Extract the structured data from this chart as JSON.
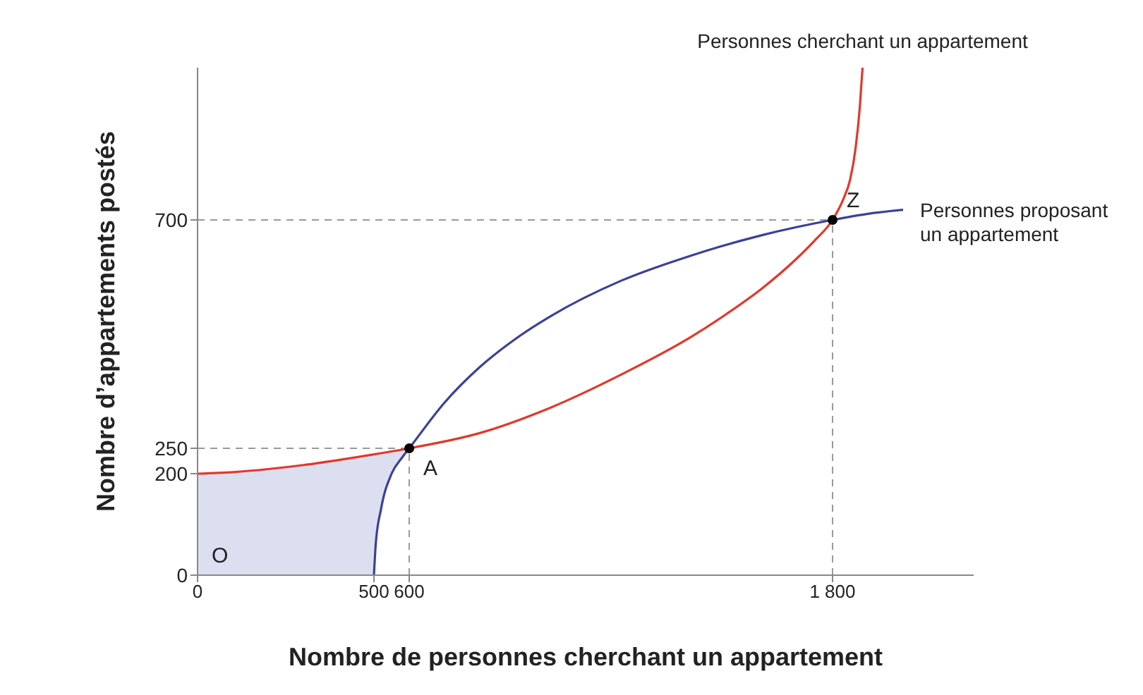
{
  "chart_data": {
    "type": "line",
    "xlabel": "Nombre de personnes cherchant un appartement",
    "ylabel": "Nombre d’appartements postés",
    "xlim": [
      0,
      2200
    ],
    "xticks": [
      0,
      500,
      600,
      {
        "value": 1800,
        "label": "1 800"
      }
    ],
    "ylim": [
      0,
      1000
    ],
    "yticks": [
      0,
      200,
      250,
      700
    ],
    "series": [
      {
        "color": "#dcdff0",
        "x": [
          0,
          100,
          200,
          300,
          400,
          500,
          505,
          520,
          550,
          580,
          600
        ],
        "values": [
          null,
          null,
          null,
          null,
          null,
          null,
          null,
          null,
          null,
          null,
          null
        ],
        "lower": [
          0,
          0,
          0,
          0,
          0,
          0,
          60,
          130,
          200,
          232,
          250
        ],
        "upper": [
          200,
          203,
          209,
          217,
          227,
          238,
          239,
          240,
          244,
          248,
          250
        ]
      },
      {
        "name": "Personnes cherchant un appartement",
        "color": "#e2382a",
        "x": [
          0,
          100,
          200,
          300,
          400,
          500,
          600,
          800,
          1000,
          1200,
          1400,
          1500,
          1600,
          1700,
          1750,
          1800,
          1830,
          1850,
          1865,
          1877,
          1885
        ],
        "values": [
          200,
          203,
          209,
          217,
          227,
          238,
          250,
          280,
          330,
          395,
          470,
          515,
          565,
          625,
          660,
          700,
          740,
          780,
          840,
          920,
          1000
        ]
      },
      {
        "name": "Personnes proposant un appartement",
        "color": "#3b409a",
        "x": [
          500,
          505,
          520,
          550,
          580,
          600,
          700,
          800,
          900,
          1000,
          1200,
          1400,
          1600,
          1800,
          1900,
          2000
        ],
        "values": [
          0,
          60,
          130,
          200,
          232,
          250,
          340,
          410,
          465,
          510,
          580,
          630,
          670,
          700,
          712,
          720
        ]
      },
      {
        "type": "scatter",
        "color": "#000000",
        "marker": "circle",
        "x": [
          600,
          1800
        ],
        "values": [
          250,
          700
        ]
      }
    ],
    "ref_lines": [
      {
        "axis": "x",
        "value": 600,
        "color": "#999999",
        "line_style": "dashed"
      },
      {
        "axis": "y",
        "value": 250,
        "color": "#999999",
        "line_style": "dashed"
      },
      {
        "axis": "x",
        "value": 1800,
        "color": "#999999",
        "line_style": "dashed"
      },
      {
        "axis": "y",
        "value": 700,
        "color": "#999999",
        "line_style": "dashed"
      }
    ],
    "annotations": [
      {
        "text": "O",
        "x": 0,
        "y": 0
      },
      {
        "text": "A",
        "x": 600,
        "y": 250
      },
      {
        "text": "Z",
        "x": 1800,
        "y": 700
      }
    ]
  }
}
